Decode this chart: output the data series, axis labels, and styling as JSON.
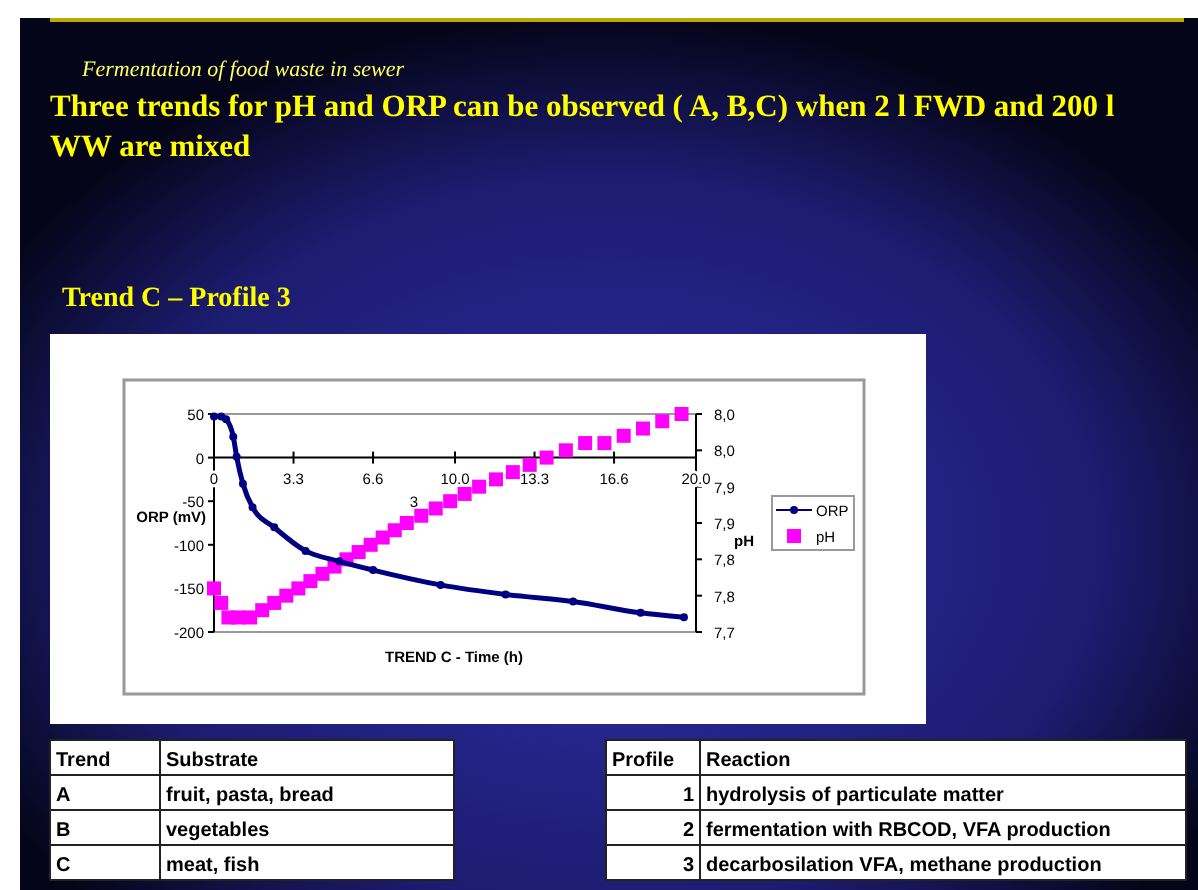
{
  "chart_data": {
    "type": "line",
    "title": "Three  trends for pH and ORP  can be observed ( A, B,C) when 2 l FWD  and 200 l WW are mixed",
    "subtitle": "Trend C – Profile 3",
    "xlabel": "TREND C - Time (h)",
    "ylabel": "ORP (mV)",
    "y2label": "pH",
    "xlim": [
      0,
      20
    ],
    "xticks": [
      0,
      3.3,
      6.6,
      {
        "value": 10,
        "label": "10.0"
      },
      13.3,
      16.6,
      {
        "value": 20,
        "label": "20.0"
      }
    ],
    "ylim": [
      -200,
      50
    ],
    "yticks": [
      -200,
      -150,
      -100,
      -50,
      0,
      50
    ],
    "y2lim": [
      7.7,
      8.0
    ],
    "y2ticks": [
      {
        "value": 7.7,
        "label": "7,7"
      },
      {
        "value": 7.75,
        "label": "7,8"
      },
      {
        "value": 7.8,
        "label": "7,8"
      },
      {
        "value": 7.85,
        "label": "7,9"
      },
      {
        "value": 7.9,
        "label": "7,9"
      },
      {
        "value": 7.95,
        "label": "8,0"
      },
      {
        "value": 8.0,
        "label": "8,0"
      }
    ],
    "grid": false,
    "legend": "right",
    "series": [
      {
        "name": "ORP",
        "type": "line",
        "color": "#000080",
        "marker": "circle",
        "x": [
          0,
          0.3,
          0.5,
          0.8,
          0.94,
          1.2,
          1.6,
          2.5,
          3.8,
          5.2,
          6.6,
          9.4,
          12.1,
          14.9,
          17.7,
          19.5
        ],
        "values": [
          47,
          47,
          44,
          24,
          1,
          -30,
          -57,
          -80,
          -107,
          -119,
          -129,
          -146,
          -157,
          -165,
          -178,
          -183
        ]
      },
      {
        "name": "pH",
        "type": "scatter",
        "axis": "y2",
        "color": "#ff00ff",
        "marker": "square",
        "x": [
          0,
          0.3,
          0.6,
          1.0,
          1.5,
          2.0,
          2.5,
          3.0,
          3.5,
          4.0,
          4.5,
          5.0,
          5.5,
          6.0,
          6.5,
          7.0,
          7.5,
          8.0,
          8.6,
          9.2,
          9.8,
          10.4,
          11.0,
          11.7,
          12.4,
          13.1,
          13.8,
          14.6,
          15.4,
          16.2,
          17.0,
          17.8,
          18.6,
          19.4
        ],
        "values": [
          7.76,
          7.74,
          7.72,
          7.72,
          7.72,
          7.73,
          7.74,
          7.75,
          7.76,
          7.77,
          7.78,
          7.79,
          7.8,
          7.81,
          7.82,
          7.83,
          7.84,
          7.85,
          7.86,
          7.87,
          7.88,
          7.89,
          7.9,
          7.91,
          7.92,
          7.93,
          7.94,
          7.95,
          7.96,
          7.96,
          7.97,
          7.98,
          7.99,
          8.0
        ]
      }
    ],
    "annotations": [
      "Fermentation of food waste in sewer",
      {
        "text": "3",
        "x": 8.3,
        "y": -57
      },
      "Trend",
      "Substrate",
      "A",
      "fruit, pasta, bread",
      "B",
      "vegetables",
      "C",
      "meat, fish",
      "Profile",
      "Reaction",
      "1",
      "hydrolysis of particulate matter",
      "2",
      "fermentation with RBCOD, VFA production",
      "3",
      "decarbosilation VFA,  methane production"
    ]
  }
}
